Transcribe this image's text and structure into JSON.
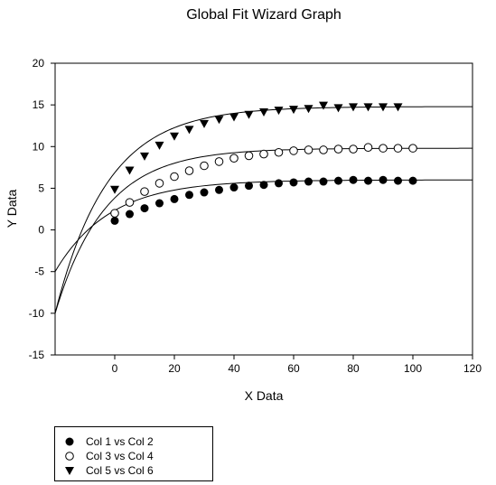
{
  "chart_data": {
    "type": "scatter",
    "title": "Global Fit Wizard Graph",
    "xlabel": "X Data",
    "ylabel": "Y Data",
    "xlim": [
      -20,
      120
    ],
    "ylim": [
      -15,
      20
    ],
    "xticks": [
      0,
      20,
      40,
      60,
      80,
      100,
      120
    ],
    "yticks": [
      -15,
      -10,
      -5,
      0,
      5,
      10,
      15,
      20
    ],
    "grid": false,
    "legend_position": "bottom-left, below plot",
    "series": [
      {
        "name": "Col 1 vs Col 2",
        "marker": "filled-circle",
        "fit": {
          "plateau": 6,
          "y0": -5,
          "k": 0.055
        },
        "points": [
          [
            0,
            1.1
          ],
          [
            5,
            1.9
          ],
          [
            10,
            2.6
          ],
          [
            15,
            3.2
          ],
          [
            20,
            3.7
          ],
          [
            25,
            4.2
          ],
          [
            30,
            4.5
          ],
          [
            35,
            4.8
          ],
          [
            40,
            5.1
          ],
          [
            45,
            5.3
          ],
          [
            50,
            5.4
          ],
          [
            55,
            5.6
          ],
          [
            60,
            5.7
          ],
          [
            65,
            5.8
          ],
          [
            70,
            5.8
          ],
          [
            75,
            5.9
          ],
          [
            80,
            6.0
          ],
          [
            85,
            5.9
          ],
          [
            90,
            6.0
          ],
          [
            95,
            5.9
          ],
          [
            100,
            5.9
          ]
        ]
      },
      {
        "name": "Col 3 vs Col 4",
        "marker": "open-circle",
        "fit": {
          "plateau": 9.8,
          "y0": -10,
          "k": 0.06
        },
        "points": [
          [
            0,
            2.0
          ],
          [
            5,
            3.3
          ],
          [
            10,
            4.6
          ],
          [
            15,
            5.6
          ],
          [
            20,
            6.4
          ],
          [
            25,
            7.1
          ],
          [
            30,
            7.7
          ],
          [
            35,
            8.2
          ],
          [
            40,
            8.6
          ],
          [
            45,
            8.9
          ],
          [
            50,
            9.1
          ],
          [
            55,
            9.3
          ],
          [
            60,
            9.5
          ],
          [
            65,
            9.6
          ],
          [
            70,
            9.6
          ],
          [
            75,
            9.7
          ],
          [
            80,
            9.7
          ],
          [
            85,
            9.9
          ],
          [
            90,
            9.8
          ],
          [
            95,
            9.8
          ],
          [
            100,
            9.8
          ]
        ]
      },
      {
        "name": "Col 5 vs Col 6",
        "marker": "filled-triangle-down",
        "fit": {
          "plateau": 14.8,
          "y0": -10,
          "k": 0.057
        },
        "points": [
          [
            0,
            4.8
          ],
          [
            5,
            7.1
          ],
          [
            10,
            8.8
          ],
          [
            15,
            10.1
          ],
          [
            20,
            11.2
          ],
          [
            25,
            12.0
          ],
          [
            30,
            12.7
          ],
          [
            35,
            13.2
          ],
          [
            40,
            13.5
          ],
          [
            45,
            13.8
          ],
          [
            50,
            14.1
          ],
          [
            55,
            14.3
          ],
          [
            60,
            14.4
          ],
          [
            65,
            14.5
          ],
          [
            70,
            14.9
          ],
          [
            75,
            14.6
          ],
          [
            80,
            14.7
          ],
          [
            85,
            14.7
          ],
          [
            90,
            14.7
          ],
          [
            95,
            14.7
          ]
        ]
      }
    ]
  }
}
